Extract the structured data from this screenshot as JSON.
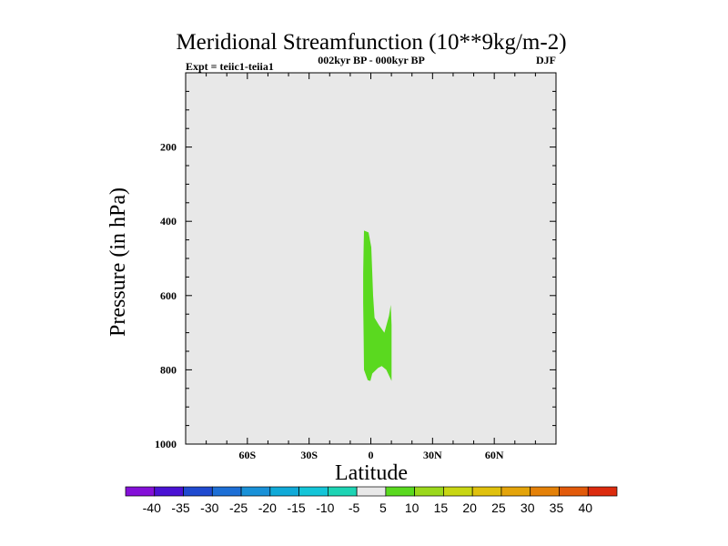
{
  "chart_data": {
    "type": "contour",
    "title": "Meridional Streamfunction (10**9kg/m-2)",
    "left_string": "Expt = teiic1-teiia1",
    "center_string": "002kyr BP - 000kyr BP",
    "right_string": "DJF",
    "xlabel": "Latitude",
    "ylabel": "Pressure (in hPa)",
    "xlim": [
      -90,
      90
    ],
    "ylim": [
      0,
      1000
    ],
    "y_reversed": true,
    "x_ticks": [
      {
        "value": -60,
        "label": "60S"
      },
      {
        "value": -30,
        "label": "30S"
      },
      {
        "value": 0,
        "label": "0"
      },
      {
        "value": 30,
        "label": "30N"
      },
      {
        "value": 60,
        "label": "60N"
      }
    ],
    "y_ticks": [
      {
        "value": 200,
        "label": "200"
      },
      {
        "value": 400,
        "label": "400"
      },
      {
        "value": 600,
        "label": "600"
      },
      {
        "value": 800,
        "label": "800"
      },
      {
        "value": 1000,
        "label": "1000"
      }
    ],
    "background_color": "#e8e8e8",
    "contour_regions": [
      {
        "level_range": [
          5,
          10
        ],
        "color": "#5ad91f",
        "outline": [
          [
            -3.3,
            425
          ],
          [
            -1.1,
            430
          ],
          [
            0.2,
            470
          ],
          [
            0.7,
            540
          ],
          [
            1.1,
            600
          ],
          [
            1.8,
            660
          ],
          [
            4.0,
            680
          ],
          [
            6.6,
            700
          ],
          [
            8.8,
            655
          ],
          [
            9.7,
            625
          ],
          [
            10.1,
            680
          ],
          [
            10.1,
            760
          ],
          [
            10.1,
            830
          ],
          [
            7.5,
            800
          ],
          [
            5.3,
            790
          ],
          [
            3.5,
            795
          ],
          [
            0.7,
            810
          ],
          [
            -0.2,
            830
          ],
          [
            -1.5,
            828
          ],
          [
            -3.3,
            800
          ],
          [
            -3.5,
            710
          ],
          [
            -3.7,
            620
          ],
          [
            -3.7,
            540
          ],
          [
            -3.5,
            470
          ],
          [
            -3.3,
            425
          ]
        ]
      }
    ],
    "colorbar": {
      "labels": [
        "-40",
        "-35",
        "-30",
        "-25",
        "-20",
        "-15",
        "-10",
        "-5",
        "5",
        "10",
        "15",
        "20",
        "25",
        "30",
        "35",
        "40"
      ],
      "colors": [
        "#8410d8",
        "#4a12d4",
        "#1f4ad0",
        "#1d6fd6",
        "#1991d8",
        "#10aad8",
        "#14c5d8",
        "#1dd4b4",
        "#e8e8e8",
        "#5ad91f",
        "#9bd81c",
        "#c8d613",
        "#e0c10d",
        "#e4a40a",
        "#e48108",
        "#e25a0a",
        "#dc2b0e"
      ]
    }
  }
}
